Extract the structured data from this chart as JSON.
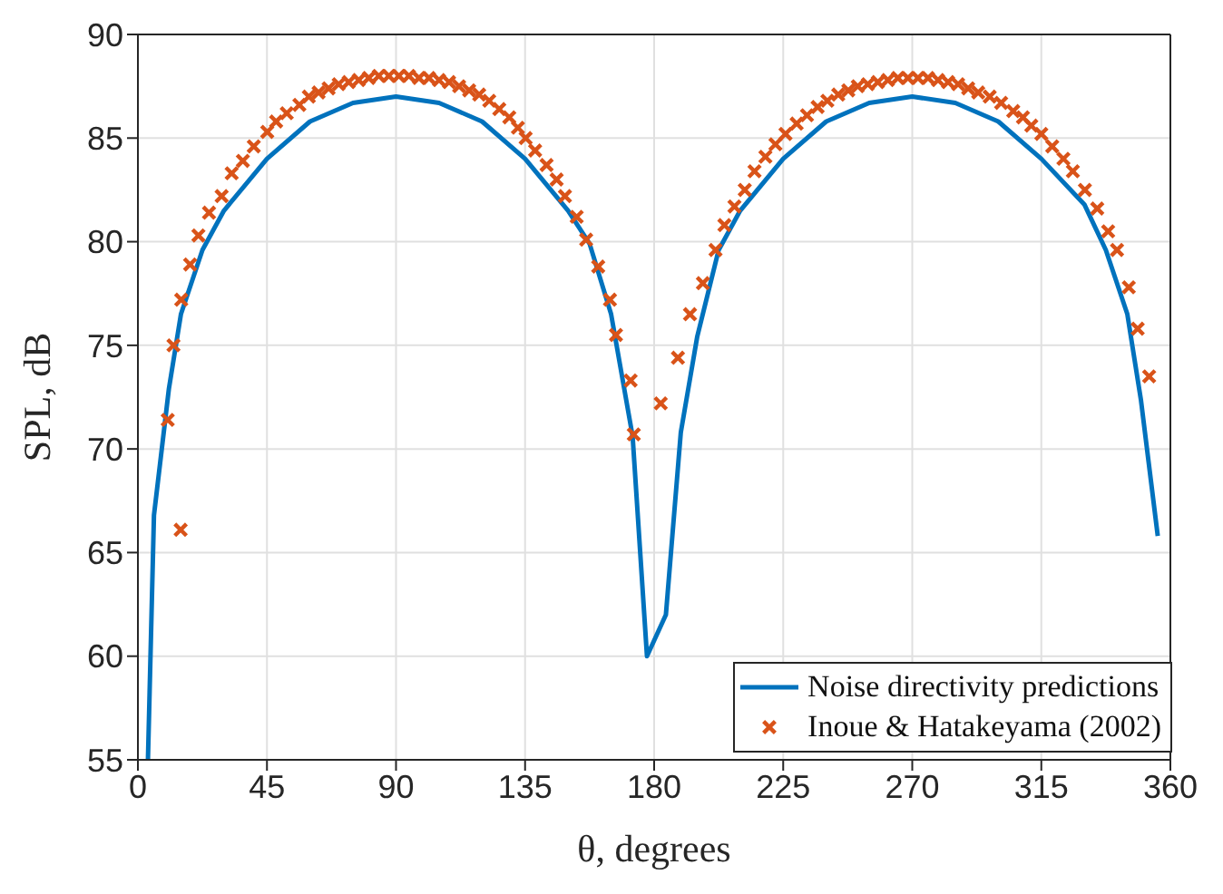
{
  "chart_data": {
    "type": "line",
    "xlabel": "θ, degrees",
    "ylabel": "SPL, dB",
    "xlim": [
      0,
      360
    ],
    "xticks": [
      0,
      45,
      90,
      135,
      180,
      225,
      270,
      315,
      360
    ],
    "ylim": [
      55,
      90
    ],
    "yticks": [
      55,
      60,
      65,
      70,
      75,
      80,
      85,
      90
    ],
    "grid": true,
    "legend": "bottom right",
    "series": [
      {
        "name": "Noise directivity predictions",
        "marker": "none",
        "color": "#0072bd",
        "x": [
          3.5,
          5.6,
          10.8,
          15,
          22.5,
          30,
          45,
          60,
          75,
          90,
          105,
          120,
          135,
          150,
          157.5,
          165,
          172.5,
          177.5,
          184.1,
          189.3,
          195,
          202.5,
          210,
          225,
          240,
          255,
          270,
          285,
          300,
          315,
          330,
          337.5,
          345,
          349.7,
          355.6
        ],
        "values": [
          55,
          66.8,
          72.9,
          76.5,
          79.6,
          81.5,
          84,
          85.8,
          86.7,
          87,
          86.7,
          85.8,
          84,
          81.5,
          79.9,
          76.5,
          70.6,
          60,
          62,
          70.8,
          75.4,
          79.6,
          81.5,
          84,
          85.8,
          86.7,
          87,
          86.7,
          85.8,
          84,
          81.8,
          79.6,
          76.5,
          72.4,
          65.8
        ]
      },
      {
        "name": "Inoue & Hatakeyama (2002)",
        "type": "scatter",
        "marker": "cross",
        "color": "#d95319",
        "x": [
          10.4,
          12.4,
          14.9,
          15.1,
          18.2,
          21.1,
          24.8,
          29.2,
          32.7,
          36.6,
          40.4,
          45.1,
          48.2,
          51.9,
          56.3,
          59.6,
          63,
          66.5,
          70,
          73.5,
          77,
          80.5,
          84,
          87.5,
          91,
          94.5,
          98,
          101.5,
          105,
          108.5,
          112,
          115.5,
          119,
          122.5,
          126,
          129.5,
          132.5,
          135.2,
          138.5,
          142.5,
          146,
          148.9,
          153,
          156.3,
          160.5,
          164.6,
          166.7,
          171.8,
          172.9,
          182.3,
          188.3,
          192.5,
          197,
          201.4,
          204.5,
          208,
          211.6,
          215,
          218.8,
          222.3,
          225.8,
          229.7,
          233.3,
          237,
          240.4,
          244.2,
          247.7,
          251,
          254.5,
          258,
          261.5,
          265,
          268.5,
          272,
          275.5,
          279,
          282.5,
          286,
          289.5,
          293,
          297,
          301,
          305.2,
          308.6,
          311.5,
          315,
          318.8,
          322.7,
          326,
          330.2,
          334.5,
          338.3,
          341.4,
          345.5,
          348.6,
          352.6
        ],
        "values": [
          71.4,
          75,
          66.1,
          77.2,
          78.9,
          80.3,
          81.4,
          82.2,
          83.3,
          83.9,
          84.6,
          85.3,
          85.8,
          86.2,
          86.6,
          87,
          87.2,
          87.4,
          87.6,
          87.7,
          87.8,
          87.9,
          88,
          88,
          88,
          88,
          87.9,
          87.9,
          87.8,
          87.7,
          87.5,
          87.3,
          87.1,
          86.8,
          86.4,
          86,
          85.5,
          85,
          84.4,
          83.7,
          83,
          82.2,
          81.2,
          80.1,
          78.8,
          77.2,
          75.5,
          73.3,
          70.7,
          72.2,
          74.4,
          76.5,
          78,
          79.6,
          80.8,
          81.7,
          82.5,
          83.4,
          84.1,
          84.7,
          85.2,
          85.7,
          86.1,
          86.5,
          86.8,
          87.1,
          87.3,
          87.5,
          87.6,
          87.7,
          87.8,
          87.9,
          87.9,
          87.9,
          87.9,
          87.8,
          87.7,
          87.6,
          87.4,
          87.2,
          87,
          86.7,
          86.3,
          86,
          85.6,
          85.2,
          84.6,
          84,
          83.4,
          82.5,
          81.6,
          80.5,
          79.6,
          77.8,
          75.8,
          73.5
        ]
      }
    ]
  }
}
